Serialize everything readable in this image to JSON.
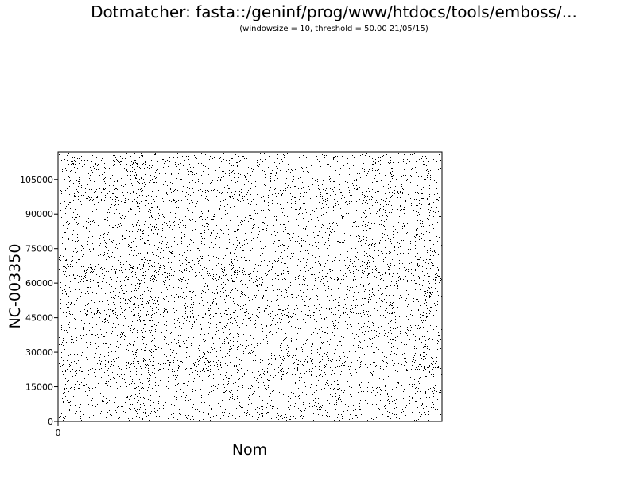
{
  "chart_data": {
    "type": "scatter",
    "title": "Dotmatcher: fasta::/geninf/prog/www/htdocs/tools/emboss/...",
    "subtitle": "(windowsize = 10, threshold = 50.00  21/05/15)",
    "xlabel": "Nom",
    "ylabel": "NC-003350",
    "y_ticks": [
      "0",
      "15000",
      "30000",
      "45000",
      "60000",
      "75000",
      "90000",
      "105000"
    ],
    "y_tick_values": [
      0,
      15000,
      30000,
      45000,
      60000,
      75000,
      90000,
      105000
    ],
    "x_ticks": [
      "0"
    ],
    "x_tick_values": [
      0
    ],
    "ylim": [
      0,
      117000
    ],
    "grid": false,
    "legend": "none",
    "dot_color": "#000000",
    "point_density": "dense random dot matrix with darker bands near y=60000 and y=48000 and vertical bands near the left third"
  }
}
